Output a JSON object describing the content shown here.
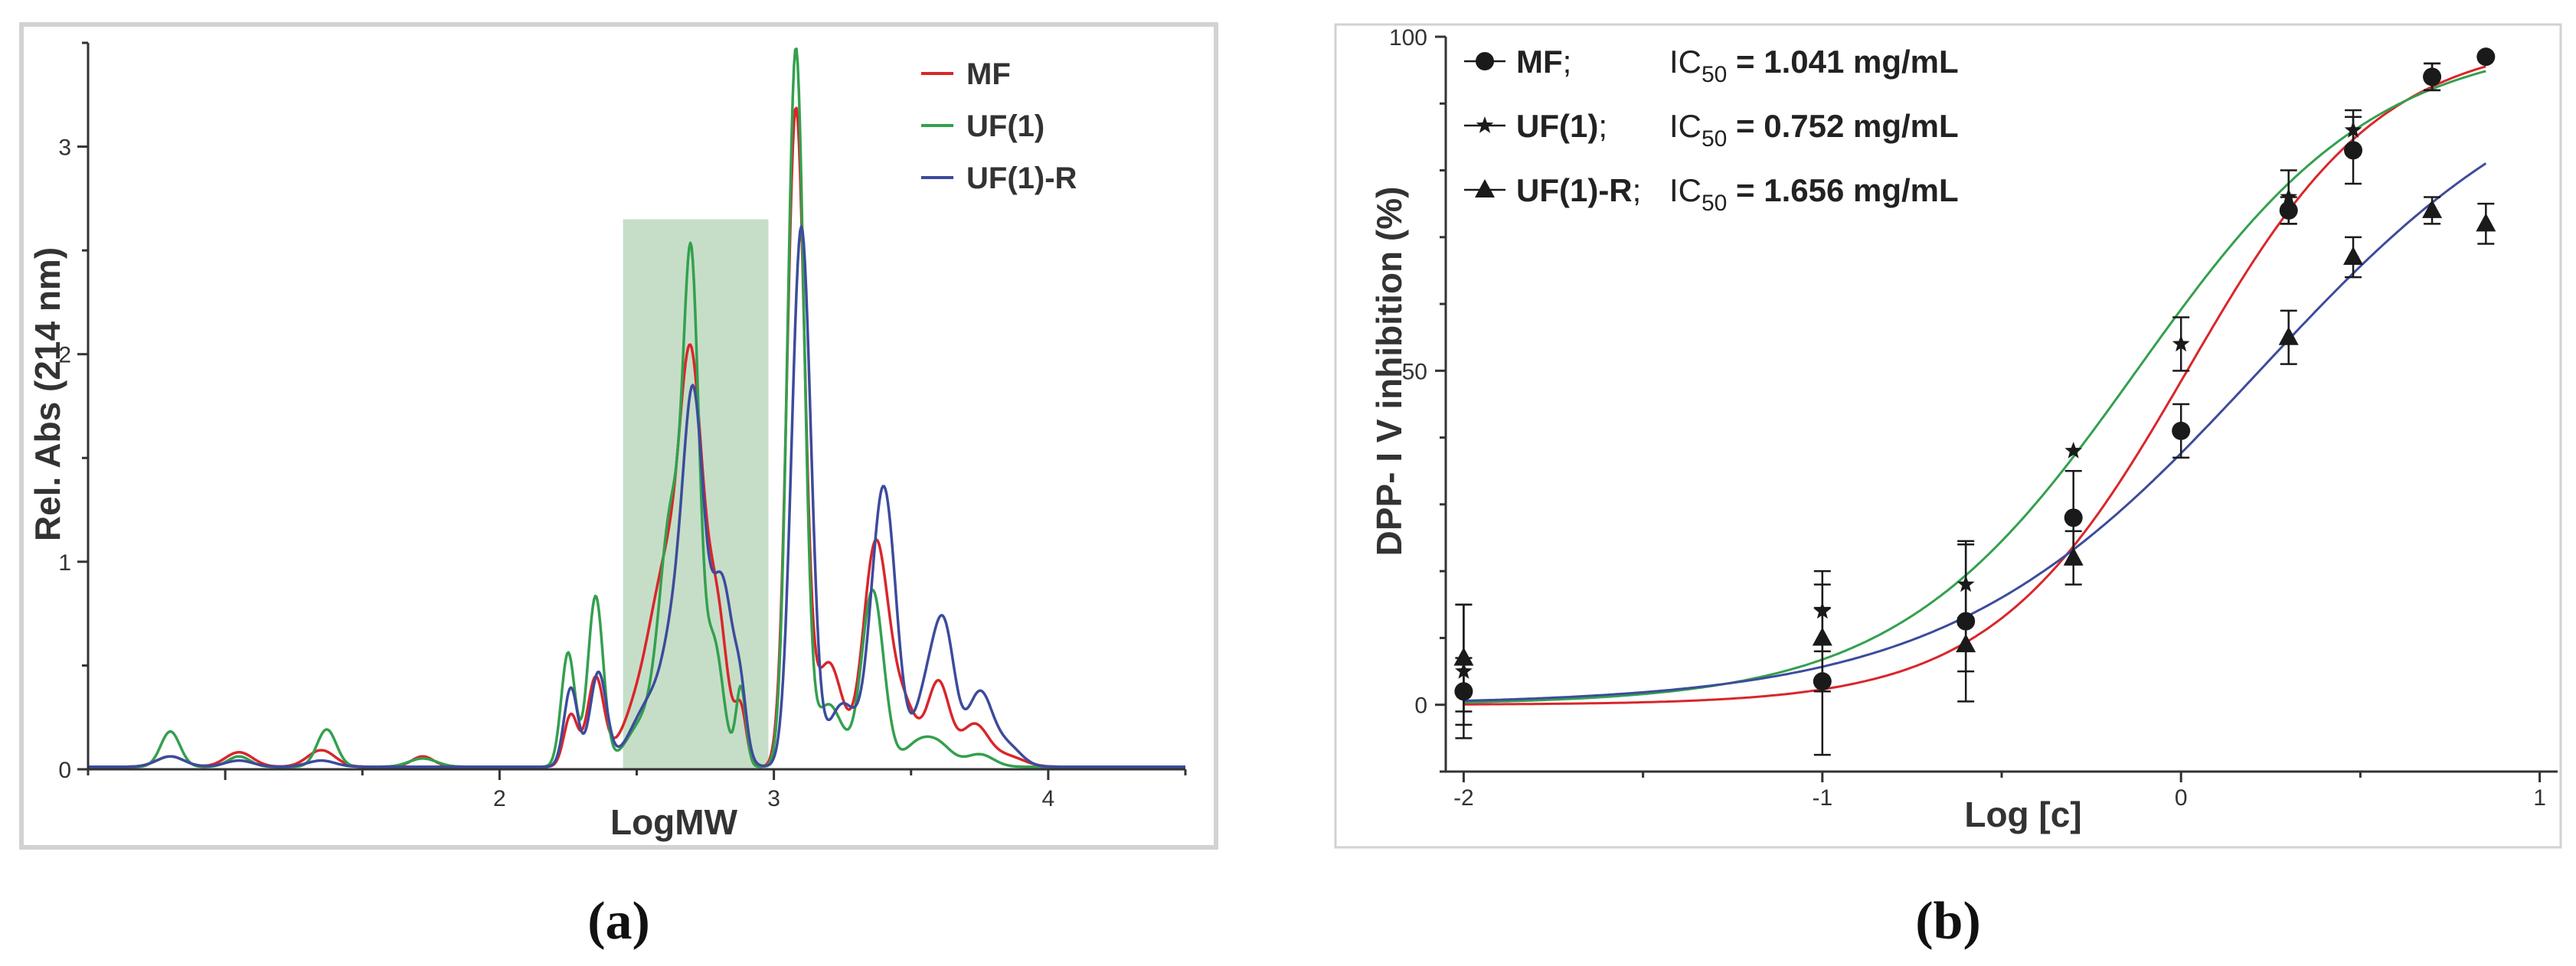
{
  "panel_a": {
    "caption": "(a)",
    "chart_data": {
      "type": "line",
      "title": "",
      "xlabel": "LogMW",
      "ylabel": "Rel. Abs (214 nm)",
      "xlim": [
        0.5,
        4.5
      ],
      "ylim": [
        0,
        3.5
      ],
      "x_ticks": [
        "2",
        "3",
        "4"
      ],
      "y_ticks": [
        "0",
        "1",
        "2",
        "3"
      ],
      "legend_position": "top-right",
      "highlight_region": {
        "x": [
          2.45,
          2.98
        ],
        "y": [
          0,
          2.65
        ],
        "color": "#c3dcc5"
      },
      "series": [
        {
          "name": "MF",
          "color": "#d9262b",
          "peaks": [
            [
              0.8,
              0.05,
              0.05
            ],
            [
              1.05,
              0.07,
              0.05
            ],
            [
              1.35,
              0.08,
              0.05
            ],
            [
              1.72,
              0.05,
              0.04
            ],
            [
              2.26,
              0.25,
              0.025
            ],
            [
              2.35,
              0.42,
              0.03
            ],
            [
              2.52,
              0.3,
              0.07
            ],
            [
              2.62,
              0.85,
              0.06
            ],
            [
              2.7,
              1.6,
              0.04
            ],
            [
              2.79,
              0.75,
              0.04
            ],
            [
              2.88,
              0.25,
              0.02
            ],
            [
              3.08,
              3.15,
              0.032
            ],
            [
              3.2,
              0.5,
              0.05
            ],
            [
              3.37,
              1.05,
              0.045
            ],
            [
              3.47,
              0.3,
              0.05
            ],
            [
              3.6,
              0.4,
              0.04
            ],
            [
              3.73,
              0.2,
              0.05
            ],
            [
              3.85,
              0.05,
              0.06
            ]
          ]
        },
        {
          "name": "UF(1)",
          "color": "#33a04e",
          "peaks": [
            [
              0.8,
              0.17,
              0.035
            ],
            [
              1.05,
              0.05,
              0.04
            ],
            [
              1.37,
              0.18,
              0.035
            ],
            [
              1.72,
              0.04,
              0.05
            ],
            [
              2.25,
              0.55,
              0.025
            ],
            [
              2.35,
              0.82,
              0.028
            ],
            [
              2.52,
              0.2,
              0.06
            ],
            [
              2.63,
              1.2,
              0.045
            ],
            [
              2.7,
              2.1,
              0.028
            ],
            [
              2.78,
              0.6,
              0.035
            ],
            [
              2.88,
              0.38,
              0.018
            ],
            [
              3.08,
              3.45,
              0.03
            ],
            [
              3.2,
              0.3,
              0.05
            ],
            [
              3.36,
              0.85,
              0.04
            ],
            [
              3.52,
              0.1,
              0.05
            ],
            [
              3.6,
              0.1,
              0.05
            ],
            [
              3.75,
              0.06,
              0.05
            ]
          ]
        },
        {
          "name": "UF(1)-R",
          "color": "#3d4b9c",
          "peaks": [
            [
              0.8,
              0.05,
              0.05
            ],
            [
              1.05,
              0.03,
              0.05
            ],
            [
              1.35,
              0.03,
              0.05
            ],
            [
              2.26,
              0.38,
              0.025
            ],
            [
              2.36,
              0.45,
              0.03
            ],
            [
              2.55,
              0.3,
              0.07
            ],
            [
              2.66,
              0.7,
              0.05
            ],
            [
              2.71,
              1.3,
              0.035
            ],
            [
              2.81,
              0.9,
              0.045
            ],
            [
              2.88,
              0.2,
              0.02
            ],
            [
              3.1,
              2.6,
              0.035
            ],
            [
              3.25,
              0.3,
              0.05
            ],
            [
              3.4,
              1.35,
              0.045
            ],
            [
              3.55,
              0.3,
              0.04
            ],
            [
              3.62,
              0.65,
              0.04
            ],
            [
              3.75,
              0.35,
              0.045
            ],
            [
              3.85,
              0.1,
              0.05
            ]
          ]
        }
      ]
    }
  },
  "panel_b": {
    "caption": "(b)",
    "chart_data": {
      "type": "scatter",
      "title": "",
      "xlabel": "Log [c]",
      "ylabel": "DPP- I V inhibition (%)",
      "xlim": [
        -2.05,
        1.05
      ],
      "ylim": [
        -10,
        100
      ],
      "x_ticks": [
        "-2",
        "-1",
        "0",
        "1"
      ],
      "y_ticks": [
        "0",
        "50",
        "100"
      ],
      "legend_position": "top-left",
      "series": [
        {
          "name": "MF;",
          "marker": "circle",
          "color": "#d9262b",
          "ic50_value": "1.041 mg/mL",
          "ic50_log": 0.017,
          "hill": 1.6,
          "bottom": 0,
          "top": 100,
          "points": [
            [
              -2,
              2,
              5
            ],
            [
              -1,
              3.5,
              11
            ],
            [
              -0.6,
              12.5,
              12
            ],
            [
              -0.3,
              28,
              7
            ],
            [
              0,
              41,
              4
            ],
            [
              0.3,
              74,
              2
            ],
            [
              0.48,
              83,
              5
            ],
            [
              0.7,
              94,
              2
            ],
            [
              0.85,
              97,
              0
            ]
          ]
        },
        {
          "name": "UF(1);",
          "marker": "star",
          "color": "#33a04e",
          "ic50_value": "0.752 mg/mL",
          "ic50_log": -0.124,
          "hill": 1.3,
          "bottom": 0,
          "top": 100,
          "points": [
            [
              -2,
              5,
              10
            ],
            [
              -1,
              14,
              6
            ],
            [
              -0.6,
              18,
              6
            ],
            [
              -0.3,
              38,
              0
            ],
            [
              0,
              54,
              4
            ],
            [
              0.3,
              76,
              4
            ],
            [
              0.48,
              86,
              3
            ],
            [
              0.7,
              94,
              2
            ]
          ]
        },
        {
          "name": "UF(1)-R;",
          "marker": "triangle",
          "color": "#3d4b9c",
          "ic50_value": "1.656 mg/mL",
          "ic50_log": 0.219,
          "hill": 1.0,
          "bottom": 0,
          "top": 100,
          "points": [
            [
              -2,
              7,
              8
            ],
            [
              -1,
              10,
              8
            ],
            [
              -0.6,
              9,
              4
            ],
            [
              -0.3,
              22,
              4
            ],
            [
              0.3,
              55,
              4
            ],
            [
              0.48,
              67,
              3
            ],
            [
              0.7,
              74,
              2
            ],
            [
              0.85,
              72,
              3
            ]
          ]
        }
      ]
    }
  },
  "legend_b": {
    "ic_text": "IC",
    "ic_sub": "50",
    "eq": " = "
  }
}
